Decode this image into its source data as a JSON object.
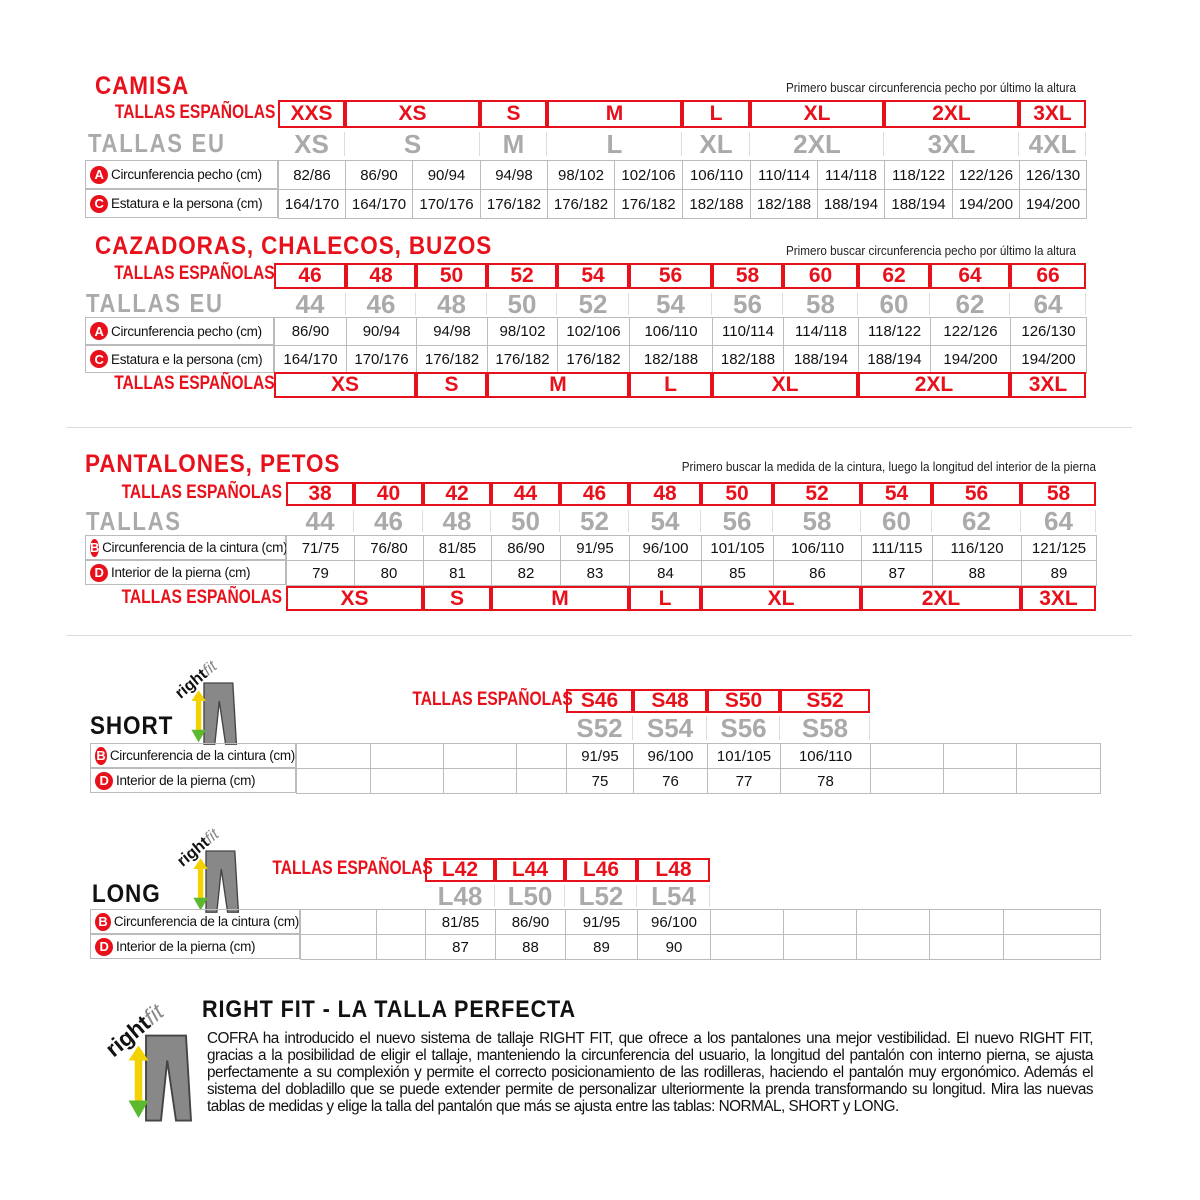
{
  "colors": {
    "accent": "#e8101a",
    "eu_gray": "#aaaaaa",
    "logo_yellow": "#f2d200",
    "logo_green": "#5cb82e"
  },
  "camisa": {
    "title": "CAMISA",
    "note": "Primero buscar circunferencia pecho por último la altura",
    "es_label": "TALLAS ESPAÑOLAS",
    "es_sizes": [
      "XXS",
      "XS",
      "S",
      "M",
      "L",
      "XL",
      "2XL",
      "3XL"
    ],
    "eu_label": "TALLAS EU",
    "eu_sizes": [
      "XS",
      "S",
      "M",
      "L",
      "XL",
      "2XL",
      "3XL",
      "4XL"
    ],
    "rows": [
      {
        "icon": "A",
        "label": "Circunferencia pecho (cm)",
        "values": [
          "82/86",
          "86/90",
          "90/94",
          "94/98",
          "98/102",
          "102/106",
          "106/110",
          "110/114",
          "114/118",
          "118/122",
          "122/126",
          "126/130"
        ]
      },
      {
        "icon": "C",
        "label": "Estatura e la persona (cm)",
        "values": [
          "164/170",
          "164/170",
          "170/176",
          "176/182",
          "176/182",
          "176/182",
          "182/188",
          "182/188",
          "188/194",
          "188/194",
          "194/200",
          "194/200"
        ]
      }
    ]
  },
  "cazadoras": {
    "title": "CAZADORAS, CHALECOS, BUZOS",
    "note": "Primero buscar circunferencia pecho por último la altura",
    "es_label": "TALLAS ESPAÑOLAS",
    "es_sizes": [
      "46",
      "48",
      "50",
      "52",
      "54",
      "56",
      "58",
      "60",
      "62",
      "64",
      "66"
    ],
    "eu_label": "TALLAS EU",
    "eu_sizes": [
      "44",
      "46",
      "48",
      "50",
      "52",
      "54",
      "56",
      "58",
      "60",
      "62",
      "64"
    ],
    "rows": [
      {
        "icon": "A",
        "label": "Circunferencia pecho (cm)",
        "values": [
          "86/90",
          "90/94",
          "94/98",
          "98/102",
          "102/106",
          "106/110",
          "110/114",
          "114/118",
          "118/122",
          "122/126",
          "126/130"
        ]
      },
      {
        "icon": "C",
        "label": "Estatura e la persona (cm)",
        "values": [
          "164/170",
          "170/176",
          "176/182",
          "176/182",
          "176/182",
          "182/188",
          "182/188",
          "188/194",
          "188/194",
          "194/200",
          "194/200"
        ]
      }
    ],
    "letter_label": "TALLAS ESPAÑOLAS",
    "letter_sizes": [
      "XS",
      "S",
      "M",
      "L",
      "XL",
      "2XL",
      "3XL"
    ]
  },
  "pantalones": {
    "title": "PANTALONES, PETOS",
    "note": "Primero buscar la medida de la cintura, luego la longitud del interior de la pierna",
    "es_label": "TALLAS ESPAÑOLAS",
    "es_sizes": [
      "38",
      "40",
      "42",
      "44",
      "46",
      "48",
      "50",
      "52",
      "54",
      "56",
      "58"
    ],
    "eu_label": "TALLAS",
    "eu_sizes": [
      "44",
      "46",
      "48",
      "50",
      "52",
      "54",
      "56",
      "58",
      "60",
      "62",
      "64"
    ],
    "rows": [
      {
        "icon": "B",
        "label": "Circunferencia de la cintura (cm)",
        "values": [
          "71/75",
          "76/80",
          "81/85",
          "86/90",
          "91/95",
          "96/100",
          "101/105",
          "106/110",
          "111/115",
          "116/120",
          "121/125"
        ]
      },
      {
        "icon": "D",
        "label": "Interior de la pierna (cm)",
        "values": [
          "79",
          "80",
          "81",
          "82",
          "83",
          "84",
          "85",
          "86",
          "87",
          "88",
          "89"
        ]
      }
    ],
    "letter_label": "TALLAS ESPAÑOLAS",
    "letter_sizes": [
      "XS",
      "S",
      "M",
      "L",
      "XL",
      "2XL",
      "3XL"
    ]
  },
  "short": {
    "title": "SHORT",
    "logo_text": "rightfit",
    "es_label": "TALLAS ESPAÑOLAS",
    "es_sizes": [
      "S46",
      "S48",
      "S50",
      "S52"
    ],
    "eu_sizes": [
      "S52",
      "S54",
      "S56",
      "S58"
    ],
    "rows": [
      {
        "icon": "B",
        "label": "Circunferencia de la cintura (cm)",
        "values": [
          "91/95",
          "96/100",
          "101/105",
          "106/110"
        ]
      },
      {
        "icon": "D",
        "label": "Interior de la pierna (cm)",
        "values": [
          "75",
          "76",
          "77",
          "78"
        ]
      }
    ]
  },
  "long": {
    "title": "LONG",
    "logo_text": "rightfit",
    "es_label": "TALLAS ESPAÑOLAS",
    "es_sizes": [
      "L42",
      "L44",
      "L46",
      "L48"
    ],
    "eu_sizes": [
      "L48",
      "L50",
      "L52",
      "L54"
    ],
    "rows": [
      {
        "icon": "B",
        "label": "Circunferencia de la cintura (cm)",
        "values": [
          "81/85",
          "86/90",
          "91/95",
          "96/100"
        ]
      },
      {
        "icon": "D",
        "label": "Interior de la pierna (cm)",
        "values": [
          "87",
          "88",
          "89",
          "90"
        ]
      }
    ]
  },
  "rightfit": {
    "logo_text": "rightfit",
    "title": "RIGHT FIT - LA TALLA PERFECTA",
    "body": "COFRA ha introducido el nuevo sistema de tallaje RIGHT FIT, que ofrece a los pantalones una mejor vestibilidad. El nuevo RIGHT FIT, gracias a la posibilidad de eligir el tallaje, manteniendo la circunferencia del usuario, la longitud del pantalón con interno pierna, se ajusta perfectamente a su complexión y permite el correcto posicionamiento de las rodilleras, haciendo el pantalón muy ergonómico. Además el sistema del dobladillo que se puede extender permite de personalizar ulteriormente la prenda transformando su longitud. Mira las nuevas tablas de medidas y elige la talla del pantalón que más se ajusta entre las tablas: NORMAL, SHORT y LONG."
  }
}
